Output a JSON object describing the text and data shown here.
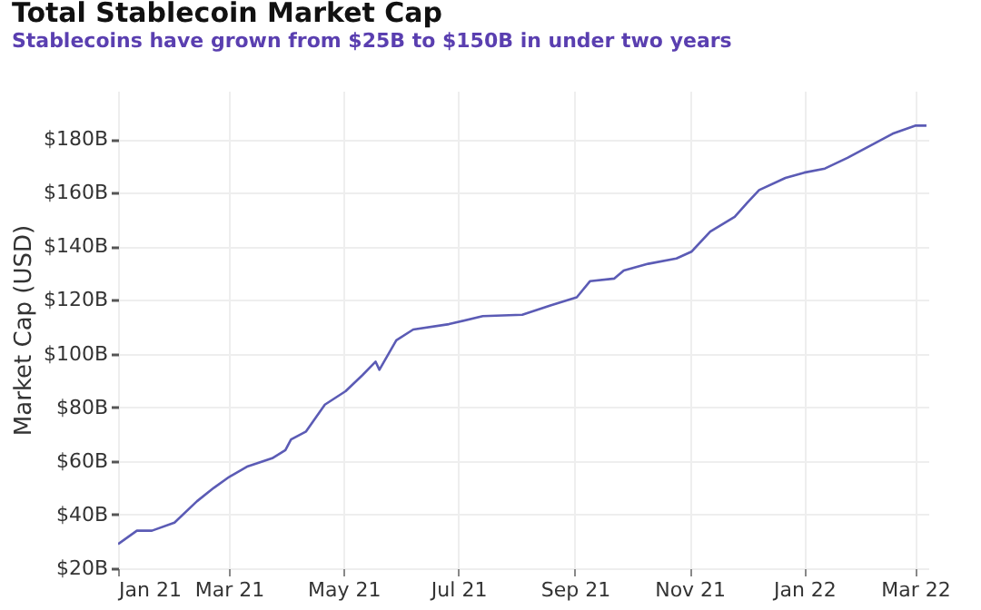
{
  "chart_data": {
    "type": "line",
    "title": "Total Stablecoin Market Cap",
    "subtitle": "Stablecoins have grown from $25B to $150B in under two years",
    "ylabel": "Market Cap (USD)",
    "x": [
      "2021-01-01",
      "2021-01-11",
      "2021-01-19",
      "2021-01-31",
      "2021-02-12",
      "2021-02-21",
      "2021-03-01",
      "2021-03-11",
      "2021-03-24",
      "2021-03-31",
      "2021-04-03",
      "2021-04-11",
      "2021-04-21",
      "2021-05-02",
      "2021-05-11",
      "2021-05-18",
      "2021-05-20",
      "2021-05-29",
      "2021-06-07",
      "2021-06-26",
      "2021-07-14",
      "2021-08-04",
      "2021-08-19",
      "2021-09-02",
      "2021-09-09",
      "2021-09-22",
      "2021-09-27",
      "2021-10-10",
      "2021-10-25",
      "2021-11-02",
      "2021-11-12",
      "2021-11-25",
      "2021-12-02",
      "2021-12-08",
      "2021-12-22",
      "2022-01-01",
      "2022-01-12",
      "2022-01-24",
      "2022-02-05",
      "2022-02-17",
      "2022-03-01",
      "2022-03-07"
    ],
    "series": [
      {
        "color": "#5b5bb5",
        "values": [
          29,
          34,
          34,
          37,
          45,
          50,
          54,
          58,
          61,
          64,
          68,
          71,
          81,
          86,
          92,
          97,
          94,
          105,
          109,
          111,
          114,
          114.5,
          118,
          121,
          127,
          128,
          131,
          133.5,
          135.5,
          138,
          145.5,
          151,
          156.5,
          161,
          165.5,
          167.5,
          169,
          173,
          177.5,
          182,
          185,
          185
        ]
      }
    ],
    "xlim": [
      "2021-01-01",
      "2022-03-08"
    ],
    "xticks": [
      {
        "value": "2021-01-01",
        "label": "Jan 21"
      },
      {
        "value": "2021-03-01",
        "label": "Mar 21"
      },
      {
        "value": "2021-05-01",
        "label": "May 21"
      },
      {
        "value": "2021-07-01",
        "label": "Jul 21"
      },
      {
        "value": "2021-09-01",
        "label": "Sep 21"
      },
      {
        "value": "2021-11-01",
        "label": "Nov 21"
      },
      {
        "value": "2022-01-01",
        "label": "Jan 22"
      },
      {
        "value": "2022-03-01",
        "label": "Mar 22"
      }
    ],
    "ylim": [
      20,
      198
    ],
    "yticks": [
      {
        "value": 20,
        "label": "$20B"
      },
      {
        "value": 40,
        "label": "$40B"
      },
      {
        "value": 60,
        "label": "$60B"
      },
      {
        "value": 80,
        "label": "$80B"
      },
      {
        "value": 100,
        "label": "$100B"
      },
      {
        "value": 120,
        "label": "$120B"
      },
      {
        "value": 140,
        "label": "$140B"
      },
      {
        "value": 160,
        "label": "$160B"
      },
      {
        "value": 180,
        "label": "$180B"
      }
    ],
    "grid": true
  }
}
